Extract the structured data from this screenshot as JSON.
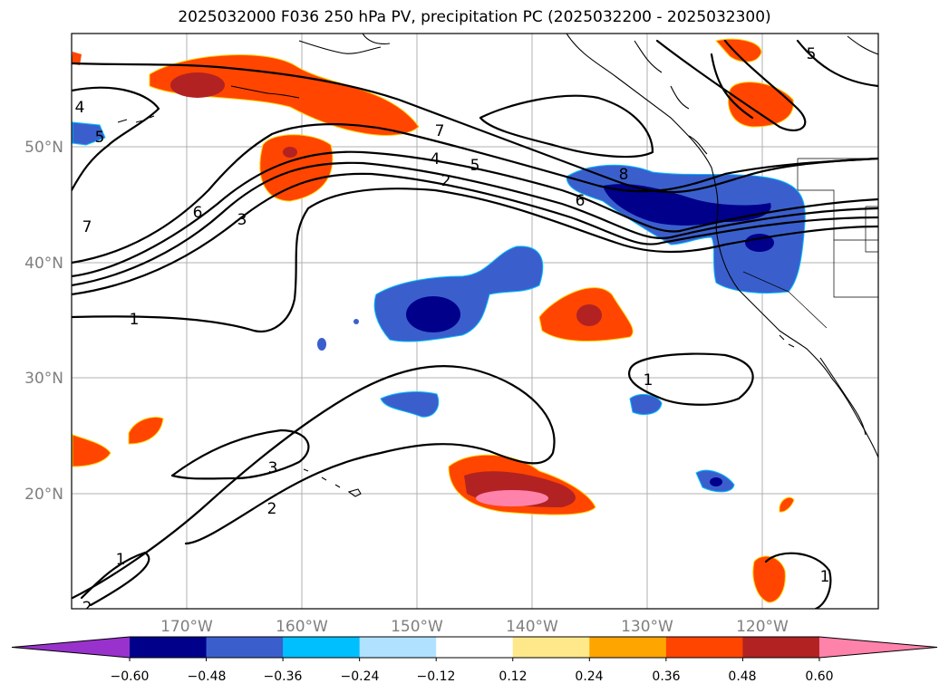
{
  "title": "2025032000 F036 250 hPa PV, precipitation PC (2025032200 - 2025032300)",
  "lat_labels": [
    "50°N",
    "40°N",
    "30°N",
    "20°N"
  ],
  "lon_labels": [
    "170°W",
    "160°W",
    "150°W",
    "140°W",
    "130°W",
    "120°W"
  ],
  "contour_labels": [
    "7",
    "4",
    "5",
    "2",
    "6",
    "3",
    "7",
    "5",
    "6",
    "8",
    "5",
    "1",
    "1",
    "3",
    "2",
    "1",
    "1",
    "2",
    "4"
  ],
  "colorbar": {
    "ticks": [
      "−0.60",
      "−0.48",
      "−0.36",
      "−0.24",
      "−0.12",
      "0.12",
      "0.24",
      "0.36",
      "0.48",
      "0.60"
    ],
    "colors": [
      "#9932cc",
      "#00008b",
      "#3a5fcd",
      "#00bfff",
      "#b0e2ff",
      "#ffffff",
      "#ffe88a",
      "#ffa500",
      "#ff4500",
      "#b22222",
      "#ff82ab"
    ]
  }
}
